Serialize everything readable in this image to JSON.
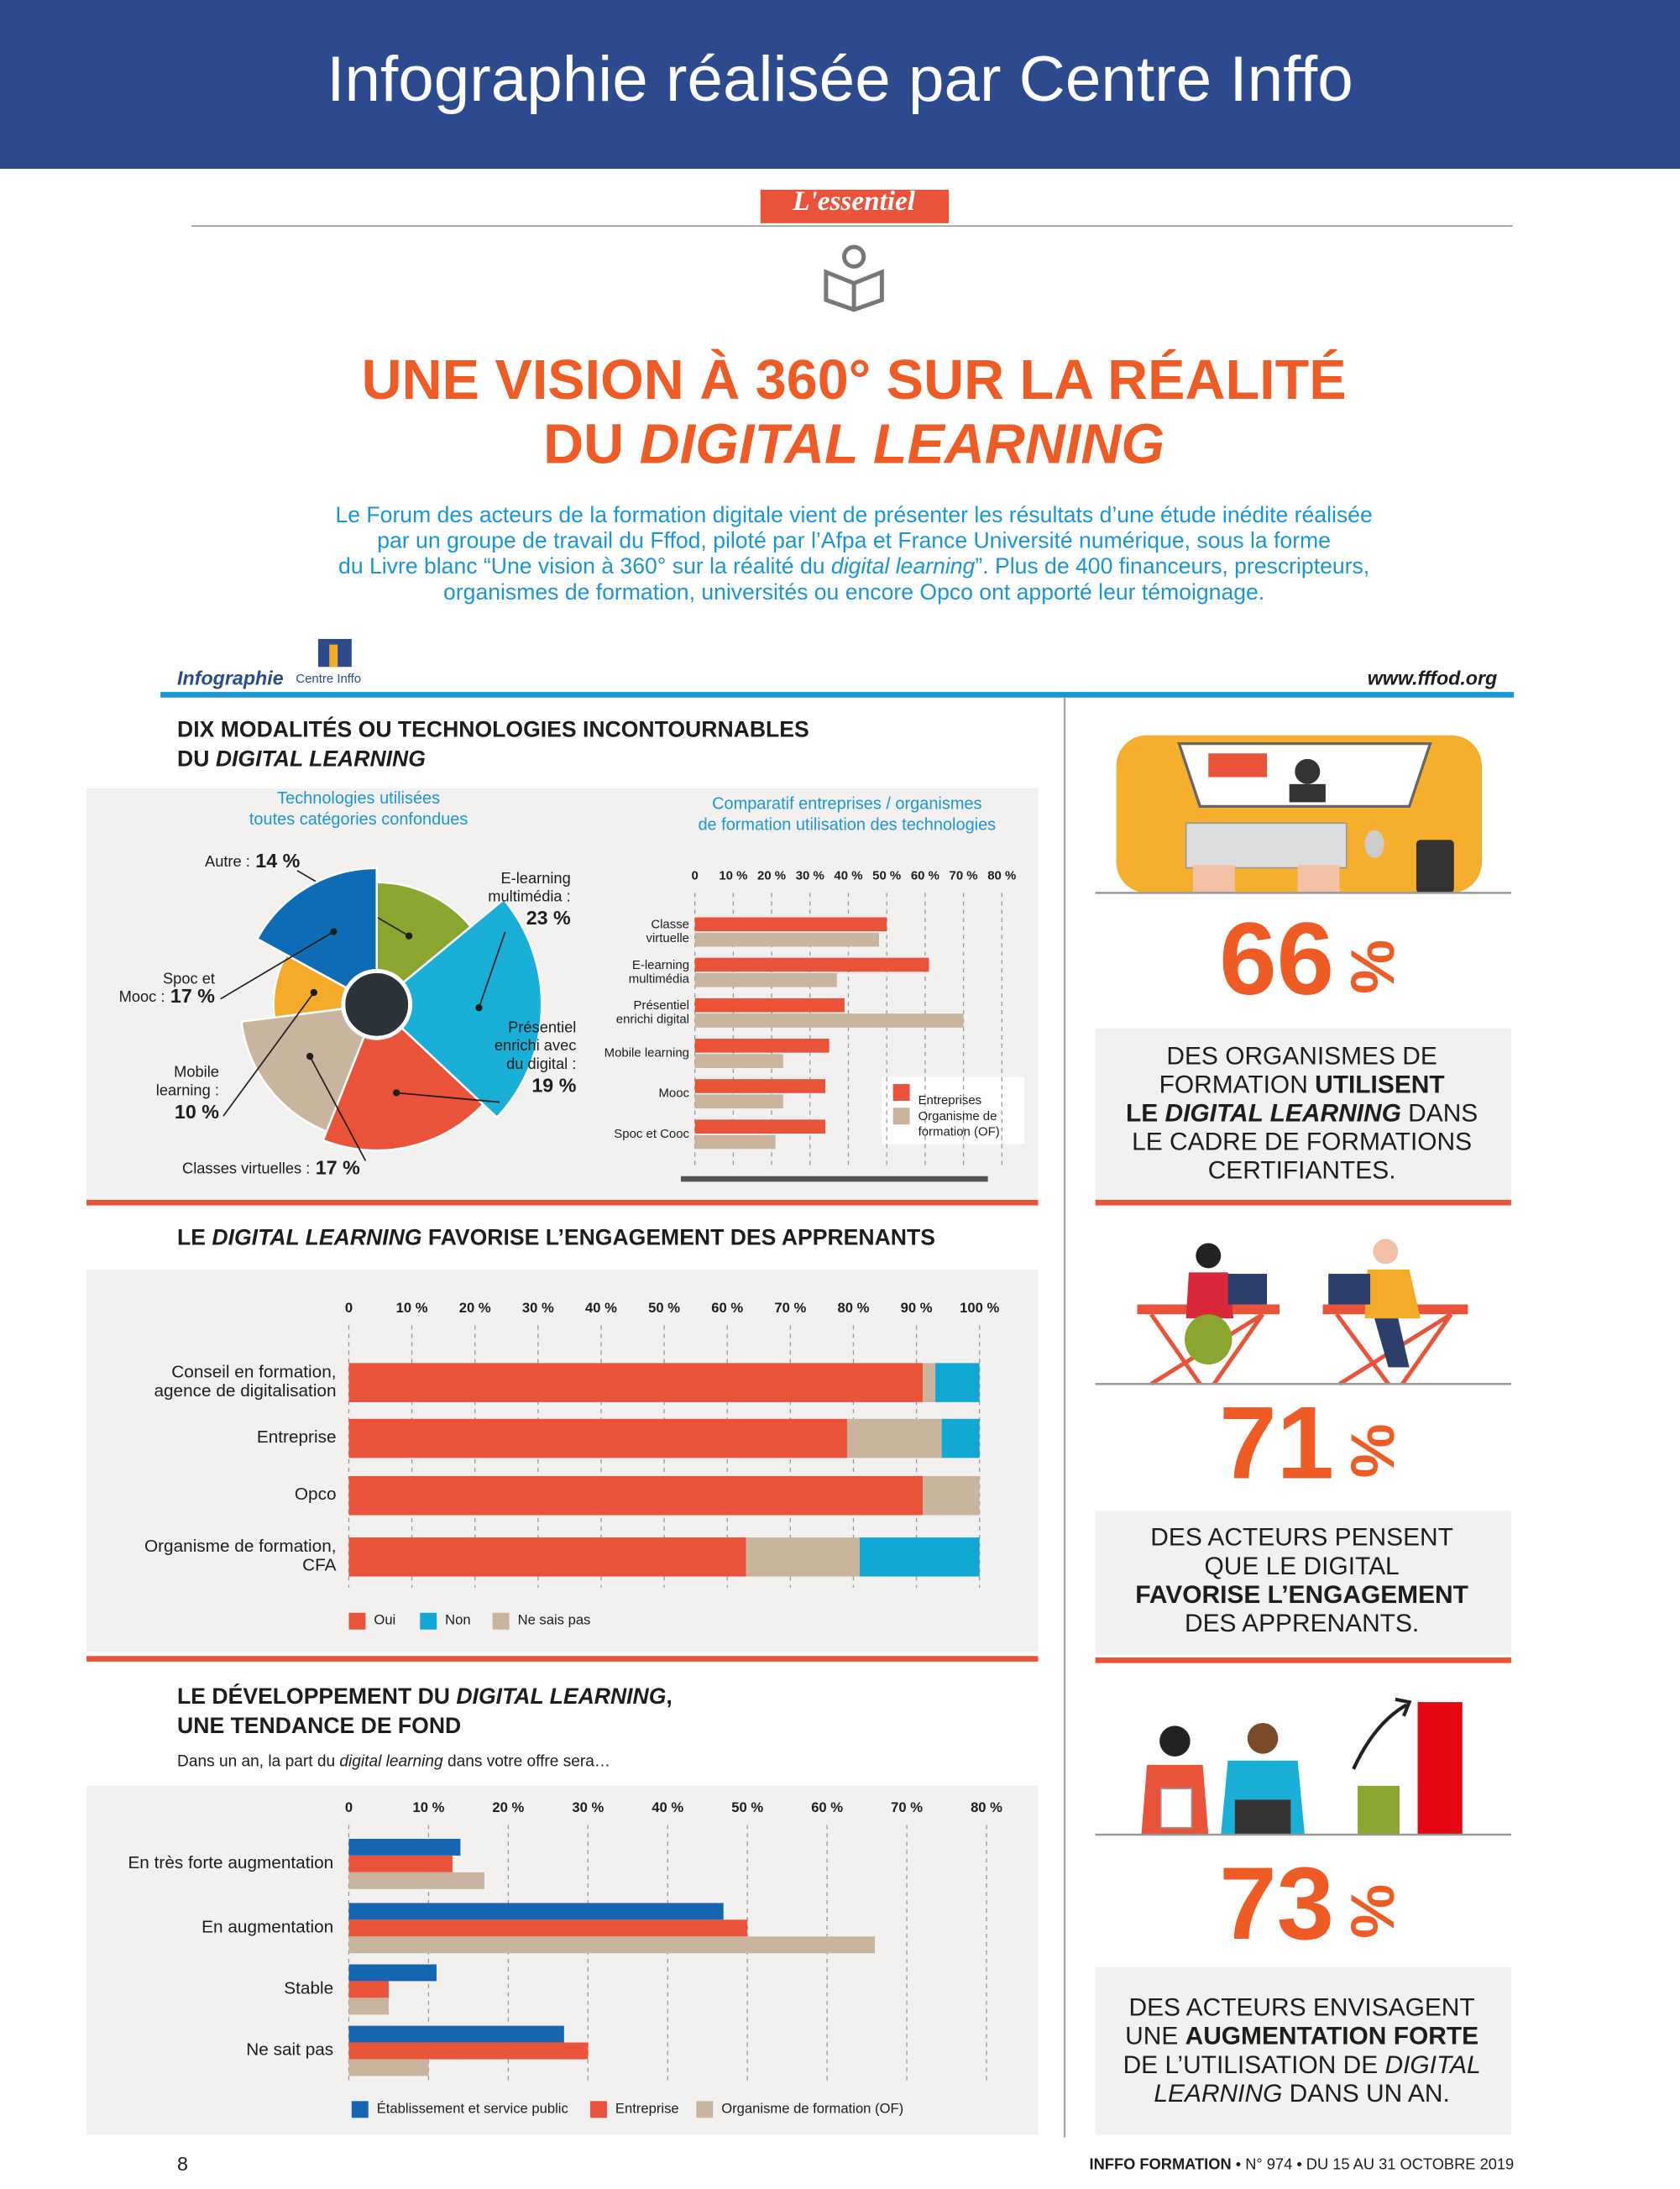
{
  "header": {
    "title": "Infographie réalisée par Centre Inffo"
  },
  "essentiel": "L'essentiel",
  "title": {
    "lines": [
      "UNE VISION À 360° SUR LA RÉALITÉ",
      [
        "DU ",
        {
          "text": "DIGITAL LEARNING",
          "italic": true
        }
      ]
    ]
  },
  "intro": {
    "lines": [
      "Le Forum des acteurs de la formation digitale vient de présenter les résultats d’une étude inédite réalisée",
      "par un groupe de travail du Fffod, piloté par l’Afpa et France Université numérique, sous la forme",
      [
        "du Livre blanc “Une vision à 360° sur la réalité du ",
        {
          "text": "digital learning",
          "italic": true
        },
        "”. Plus de 400 financeurs, prescripteurs,"
      ],
      "organismes de formation, universités ou encore Opco ont apporté leur témoignage."
    ]
  },
  "infographie": {
    "label": "Infographie",
    "logo": "Centre Inffo",
    "url": "www.fffod.org"
  },
  "sections": [
    {
      "heading": [
        "DIX MODALITÉS OU TECHNOLOGIES INCONTOURNABLES",
        [
          "DU ",
          {
            "text": "DIGITAL LEARNING",
            "italic": true
          }
        ]
      ]
    },
    {
      "heading": [
        [
          "LE ",
          {
            "text": "DIGITAL LEARNING",
            "italic": true
          },
          " FAVORISE L’ENGAGEMENT DES APPRENANTS"
        ]
      ]
    },
    {
      "heading": [
        [
          "LE DÉVELOPPEMENT DU ",
          {
            "text": "DIGITAL LEARNING",
            "italic": true
          },
          ","
        ],
        "UNE TENDANCE DE FOND"
      ],
      "subtitle": [
        [
          "Dans un an, la part du ",
          {
            "text": "digital learning",
            "italic": true
          },
          " dans votre offre sera…"
        ]
      ]
    }
  ],
  "chart_data": [
    {
      "type": "pie",
      "title": [
        "Technologies utilisées",
        "toutes catégories confondues"
      ],
      "categories": [
        "Autre :",
        "E-learning multimédia :",
        "Présentiel enrichi avec du digital :",
        "Classes virtuelles :",
        "Mobile learning :",
        "Spoc et Mooc :"
      ],
      "values": [
        14,
        23,
        19,
        17,
        10,
        17
      ],
      "value_labels": [
        "14 %",
        "23 %",
        "19 %",
        "17 %",
        "10 %",
        "17 %"
      ],
      "colors": [
        "#8aa62e",
        "#1aafd6",
        "#e8533a",
        "#c9b49e",
        "#f4ab2a",
        "#0d6cb5"
      ]
    },
    {
      "type": "bar",
      "orientation": "horizontal",
      "title": [
        "Comparatif entreprises / organismes",
        "de formation utilisation des technologies"
      ],
      "categories": [
        "Classe virtuelle",
        "E-learning multimédia",
        "Présentiel enrichi digital",
        "Mobile learning",
        "Mooc",
        "Spoc et Cooc"
      ],
      "series": [
        {
          "name": "Entreprises",
          "color": "#e8533a",
          "values": [
            50,
            61,
            39,
            35,
            34,
            34
          ]
        },
        {
          "name": "Organisme de formation (OF)",
          "color": "#c9b49e",
          "values": [
            48,
            37,
            70,
            23,
            23,
            21
          ]
        }
      ],
      "xlim": [
        0,
        80
      ],
      "xticks": [
        0,
        {
          "value": 10,
          "label": "10 %"
        },
        {
          "value": 20,
          "label": "20 %"
        },
        {
          "value": 30,
          "label": "30 %"
        },
        {
          "value": 40,
          "label": "40 %"
        },
        {
          "value": 50,
          "label": "50 %"
        },
        {
          "value": 60,
          "label": "60 %"
        },
        {
          "value": 70,
          "label": "70 %"
        },
        {
          "value": 80,
          "label": "80 %"
        }
      ],
      "grid": true
    },
    {
      "type": "stacked_bar",
      "orientation": "horizontal",
      "categories": [
        "Conseil en formation, agence de digitalisation",
        "Entreprise",
        "Opco",
        "Organisme de formation, CFA"
      ],
      "series": [
        {
          "name": "Oui",
          "color": "#e8533a",
          "values": [
            91,
            79,
            91,
            63
          ]
        },
        {
          "name": "Ne sais pas",
          "color": "#c9b49e",
          "values": [
            2,
            15,
            9,
            18
          ]
        },
        {
          "name": "Non",
          "color": "#13a7d4",
          "values": [
            7,
            6,
            0,
            19
          ]
        }
      ],
      "xlim": [
        0,
        100
      ],
      "xticks": [
        0,
        {
          "value": 10,
          "label": "10 %"
        },
        {
          "value": 20,
          "label": "20 %"
        },
        {
          "value": 30,
          "label": "30 %"
        },
        {
          "value": 40,
          "label": "40 %"
        },
        {
          "value": 50,
          "label": "50 %"
        },
        {
          "value": 60,
          "label": "60 %"
        },
        {
          "value": 70,
          "label": "70 %"
        },
        {
          "value": 80,
          "label": "80 %"
        },
        {
          "value": 90,
          "label": "90 %"
        },
        {
          "value": 100,
          "label": "100 %"
        }
      ],
      "grid": true
    },
    {
      "type": "bar",
      "orientation": "horizontal",
      "categories": [
        "En très forte augmentation",
        "En augmentation",
        "Stable",
        "Ne sait pas"
      ],
      "series": [
        {
          "name": "Établissement et service public",
          "color": "#1565b0",
          "values": [
            14,
            47,
            11,
            27
          ]
        },
        {
          "name": "Entreprise",
          "color": "#e8533a",
          "values": [
            13,
            50,
            5,
            30
          ]
        },
        {
          "name": "Organisme de formation (OF)",
          "color": "#c9b49e",
          "values": [
            17,
            66,
            5,
            10
          ]
        }
      ],
      "xlim": [
        0,
        80
      ],
      "xticks": [
        0,
        {
          "value": 10,
          "label": "10 %"
        },
        {
          "value": 20,
          "label": "20 %"
        },
        {
          "value": 30,
          "label": "30 %"
        },
        {
          "value": 40,
          "label": "40 %"
        },
        {
          "value": 50,
          "label": "50 %"
        },
        {
          "value": 60,
          "label": "60 %"
        },
        {
          "value": 70,
          "label": "70 %"
        },
        {
          "value": 80,
          "label": "80 %"
        }
      ],
      "grid": true
    }
  ],
  "stats": [
    {
      "number": 66,
      "unit": "%",
      "lines": [
        "DES ORGANISMES DE",
        [
          "FORMATION ",
          {
            "text": "UTILISENT",
            "bold": true
          }
        ],
        [
          {
            "text": "LE ",
            "bold": true
          },
          {
            "text": "DIGITAL LEARNING",
            "bold": true,
            "italic": true
          },
          " DANS"
        ],
        "LE CADRE DE FORMATIONS",
        "CERTIFIANTES."
      ]
    },
    {
      "number": 71,
      "unit": "%",
      "lines": [
        "DES ACTEURS PENSENT",
        "QUE LE DIGITAL",
        [
          {
            "text": "FAVORISE L’ENGAGEMENT",
            "bold": true
          }
        ],
        "DES APPRENANTS."
      ]
    },
    {
      "number": 73,
      "unit": "%",
      "lines": [
        "DES ACTEURS ENVISAGENT",
        [
          "UNE ",
          {
            "text": "AUGMENTATION FORTE",
            "bold": true
          }
        ],
        [
          "DE L’UTILISATION DE ",
          {
            "text": "DIGITAL",
            "italic": true
          }
        ],
        [
          {
            "text": "LEARNING",
            "italic": true
          },
          " DANS UN AN."
        ]
      ]
    }
  ],
  "footer": {
    "page": "8",
    "publication": [
      {
        "text": "INFFO FORMATION",
        "bold": true
      },
      " • N° 974 • DU 15 AU 31 OCTOBRE 2019"
    ]
  }
}
